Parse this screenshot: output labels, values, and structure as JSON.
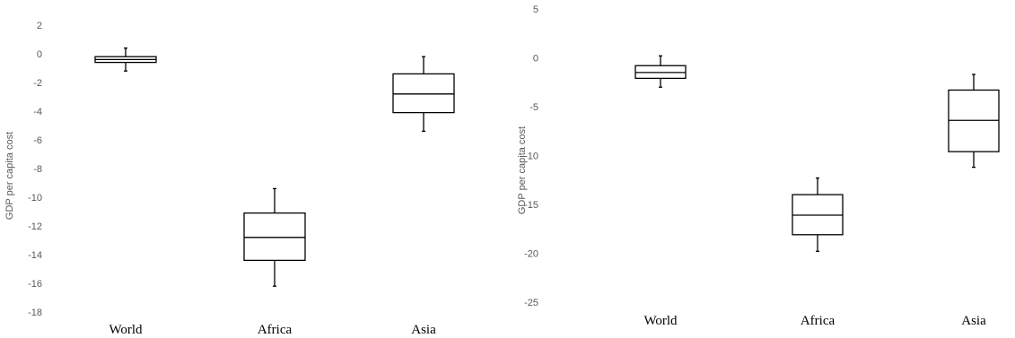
{
  "chart_data": [
    {
      "type": "box",
      "ylabel": "GDP per capita cost",
      "ylim": [
        -18,
        2
      ],
      "y_ticks": [
        "2",
        "0",
        "-2",
        "-4",
        "-6",
        "-8",
        "-10",
        "-12",
        "-14",
        "-16",
        "-18"
      ],
      "categories": [
        "World",
        "Africa",
        "Asia"
      ],
      "boxes": [
        {
          "min": -1.2,
          "q1": -0.6,
          "median": -0.4,
          "q3": -0.2,
          "max": 0.4
        },
        {
          "min": -16.2,
          "q1": -14.4,
          "median": -12.8,
          "q3": -11.1,
          "max": -9.4
        },
        {
          "min": -5.4,
          "q1": -4.1,
          "median": -2.8,
          "q3": -1.4,
          "max": -0.2
        }
      ],
      "grid": false,
      "color": "#000000"
    },
    {
      "type": "box",
      "ylabel": "GDP per capita cost",
      "ylim": [
        -25,
        5
      ],
      "y_ticks": [
        "5",
        "0",
        "-5",
        "-10",
        "-15",
        "-20",
        "-25"
      ],
      "categories": [
        "World",
        "Africa",
        "Asia"
      ],
      "boxes": [
        {
          "min": -3.0,
          "q1": -2.1,
          "median": -1.5,
          "q3": -0.8,
          "max": 0.2
        },
        {
          "min": -19.8,
          "q1": -18.1,
          "median": -16.1,
          "q3": -14.0,
          "max": -12.3
        },
        {
          "min": -11.2,
          "q1": -9.6,
          "median": -6.4,
          "q3": -3.3,
          "max": -1.7
        }
      ],
      "grid": false,
      "color": "#000000"
    }
  ]
}
